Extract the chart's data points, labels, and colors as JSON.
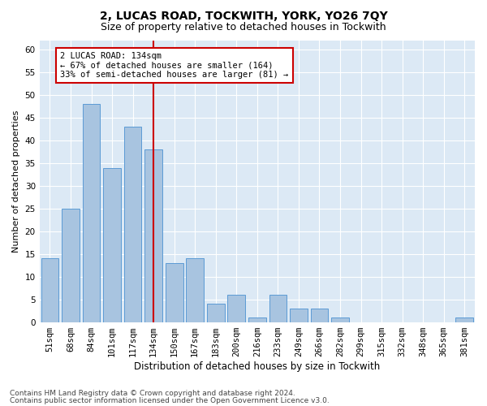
{
  "title": "2, LUCAS ROAD, TOCKWITH, YORK, YO26 7QY",
  "subtitle": "Size of property relative to detached houses in Tockwith",
  "xlabel": "Distribution of detached houses by size in Tockwith",
  "ylabel": "Number of detached properties",
  "categories": [
    "51sqm",
    "68sqm",
    "84sqm",
    "101sqm",
    "117sqm",
    "134sqm",
    "150sqm",
    "167sqm",
    "183sqm",
    "200sqm",
    "216sqm",
    "233sqm",
    "249sqm",
    "266sqm",
    "282sqm",
    "299sqm",
    "315sqm",
    "332sqm",
    "348sqm",
    "365sqm",
    "381sqm"
  ],
  "values": [
    14,
    25,
    48,
    34,
    43,
    38,
    13,
    14,
    4,
    6,
    1,
    6,
    3,
    3,
    1,
    0,
    0,
    0,
    0,
    0,
    1
  ],
  "bar_color": "#a8c4e0",
  "bar_edge_color": "#5b9bd5",
  "vline_x_index": 5,
  "vline_color": "#cc0000",
  "annotation_line1": "2 LUCAS ROAD: 134sqm",
  "annotation_line2": "← 67% of detached houses are smaller (164)",
  "annotation_line3": "33% of semi-detached houses are larger (81) →",
  "annotation_box_color": "#ffffff",
  "annotation_box_edge_color": "#cc0000",
  "ylim": [
    0,
    62
  ],
  "yticks": [
    0,
    5,
    10,
    15,
    20,
    25,
    30,
    35,
    40,
    45,
    50,
    55,
    60
  ],
  "plot_bg_color": "#dce9f5",
  "footer_line1": "Contains HM Land Registry data © Crown copyright and database right 2024.",
  "footer_line2": "Contains public sector information licensed under the Open Government Licence v3.0.",
  "title_fontsize": 10,
  "subtitle_fontsize": 9,
  "xlabel_fontsize": 8.5,
  "ylabel_fontsize": 8,
  "tick_fontsize": 7.5,
  "annotation_fontsize": 7.5,
  "footer_fontsize": 6.5
}
